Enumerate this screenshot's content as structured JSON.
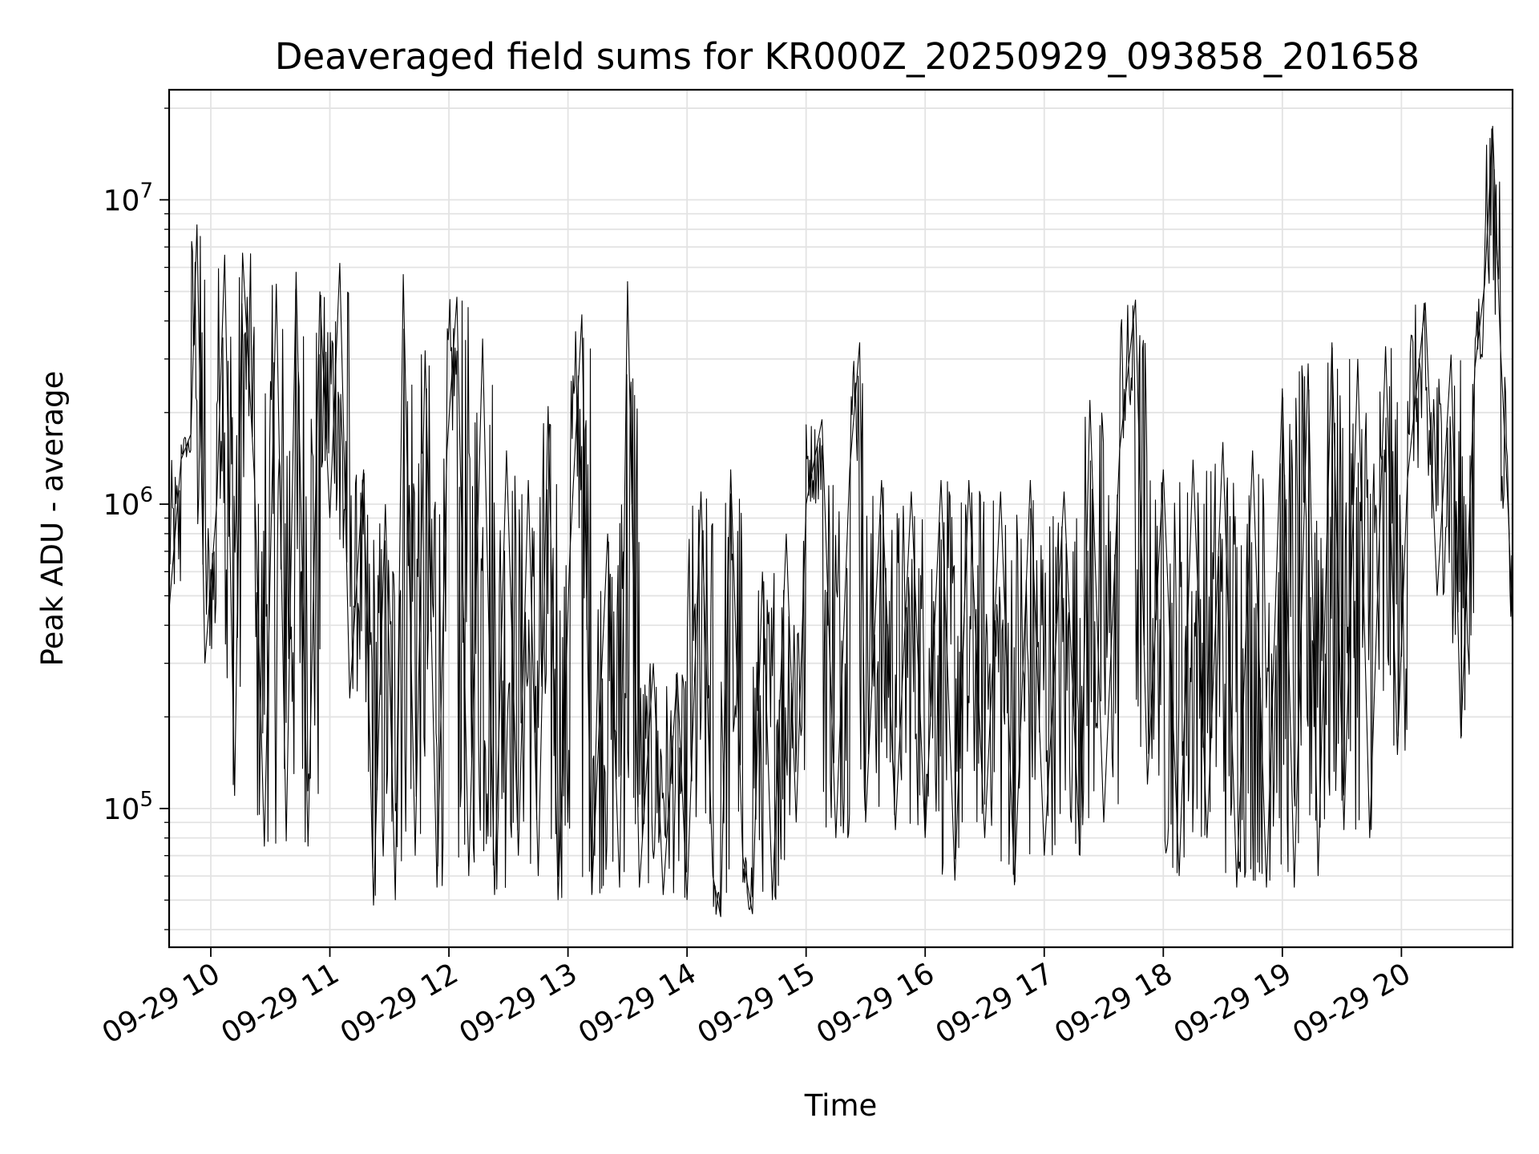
{
  "chart_data": {
    "type": "line",
    "title": "Deaveraged field sums for KR000Z_20250929_093858_201658",
    "xlabel": "Time",
    "ylabel": "Peak ADU - average",
    "yscale": "log",
    "grid": true,
    "legend": "none",
    "line_color": "#000000",
    "xlim": [
      "2025-09-29 09:39",
      "2025-09-29 20:56"
    ],
    "ylim": [
      35000,
      23000000
    ],
    "x_ticks": [
      "09-29 10",
      "09-29 11",
      "09-29 12",
      "09-29 13",
      "09-29 14",
      "09-29 15",
      "09-29 16",
      "09-29 17",
      "09-29 18",
      "09-29 19",
      "09-29 20"
    ],
    "y_ticks": [
      {
        "value": 100000,
        "base": "10",
        "exp": "5"
      },
      {
        "value": 1000000,
        "base": "10",
        "exp": "6"
      },
      {
        "value": 10000000,
        "base": "10",
        "exp": "7"
      }
    ],
    "series": [
      {
        "points": [
          [
            "09:39",
            450000
          ],
          [
            "09:45",
            1400000
          ],
          [
            "09:50",
            1700000
          ],
          [
            "09:53",
            8300000
          ],
          [
            "09:57",
            300000
          ],
          [
            "10:03",
            1000000
          ],
          [
            "10:07",
            6600000
          ],
          [
            "10:12",
            110000
          ],
          [
            "10:16",
            6700000
          ],
          [
            "10:22",
            1200000
          ],
          [
            "10:27",
            75000
          ],
          [
            "10:33",
            5300000
          ],
          [
            "10:38",
            78000
          ],
          [
            "10:43",
            5800000
          ],
          [
            "10:49",
            75000
          ],
          [
            "10:55",
            5000000
          ],
          [
            "11:00",
            900000
          ],
          [
            "11:05",
            6200000
          ],
          [
            "11:10",
            230000
          ],
          [
            "11:17",
            1300000
          ],
          [
            "11:22",
            48000
          ],
          [
            "11:28",
            1000000
          ],
          [
            "11:33",
            50000
          ],
          [
            "11:37",
            5700000
          ],
          [
            "11:43",
            70000
          ],
          [
            "11:48",
            3200000
          ],
          [
            "11:54",
            55000
          ],
          [
            "11:59",
            1500000
          ],
          [
            "12:04",
            4800000
          ],
          [
            "12:10",
            60000
          ],
          [
            "12:17",
            3500000
          ],
          [
            "12:23",
            52000
          ],
          [
            "12:29",
            1500000
          ],
          [
            "12:35",
            70000
          ],
          [
            "12:40",
            1200000
          ],
          [
            "12:45",
            60000
          ],
          [
            "12:50",
            2100000
          ],
          [
            "12:55",
            50000
          ],
          [
            "13:01",
            700000
          ],
          [
            "13:07",
            4200000
          ],
          [
            "13:12",
            52000
          ],
          [
            "13:20",
            800000
          ],
          [
            "13:26",
            55000
          ],
          [
            "13:30",
            5400000
          ],
          [
            "13:36",
            55000
          ],
          [
            "13:43",
            300000
          ],
          [
            "13:48",
            52000
          ],
          [
            "13:55",
            280000
          ],
          [
            "14:00",
            50000
          ],
          [
            "14:07",
            1100000
          ],
          [
            "14:13",
            60000
          ],
          [
            "14:17",
            44000
          ],
          [
            "14:22",
            1300000
          ],
          [
            "14:28",
            70000
          ],
          [
            "14:33",
            45000
          ],
          [
            "14:38",
            600000
          ],
          [
            "14:43",
            50000
          ],
          [
            "14:50",
            800000
          ],
          [
            "14:55",
            90000
          ],
          [
            "15:00",
            1000000
          ],
          [
            "15:08",
            1900000
          ],
          [
            "15:15",
            80000
          ],
          [
            "15:22",
            1300000
          ],
          [
            "15:27",
            3400000
          ],
          [
            "15:30",
            90000
          ],
          [
            "15:38",
            1200000
          ],
          [
            "15:45",
            85000
          ],
          [
            "15:53",
            1100000
          ],
          [
            "16:00",
            80000
          ],
          [
            "16:08",
            1200000
          ],
          [
            "16:15",
            58000
          ],
          [
            "16:22",
            1200000
          ],
          [
            "16:30",
            80000
          ],
          [
            "16:38",
            1100000
          ],
          [
            "16:45",
            56000
          ],
          [
            "16:53",
            1200000
          ],
          [
            "17:00",
            70000
          ],
          [
            "17:10",
            1100000
          ],
          [
            "17:18",
            70000
          ],
          [
            "17:23",
            2200000
          ],
          [
            "17:30",
            90000
          ],
          [
            "17:38",
            1500000
          ],
          [
            "17:46",
            4700000
          ],
          [
            "17:52",
            120000
          ],
          [
            "18:00",
            1300000
          ],
          [
            "18:08",
            60000
          ],
          [
            "18:15",
            1400000
          ],
          [
            "18:22",
            80000
          ],
          [
            "18:30",
            1600000
          ],
          [
            "18:37",
            55000
          ],
          [
            "18:45",
            1500000
          ],
          [
            "18:52",
            55000
          ],
          [
            "19:00",
            2400000
          ],
          [
            "19:06",
            55000
          ],
          [
            "19:13",
            2900000
          ],
          [
            "19:18",
            60000
          ],
          [
            "19:25",
            3400000
          ],
          [
            "19:31",
            85000
          ],
          [
            "19:38",
            3000000
          ],
          [
            "19:44",
            80000
          ],
          [
            "19:52",
            3300000
          ],
          [
            "19:58",
            150000
          ],
          [
            "20:03",
            1200000
          ],
          [
            "20:12",
            4600000
          ],
          [
            "20:18",
            500000
          ],
          [
            "20:25",
            3100000
          ],
          [
            "20:30",
            170000
          ],
          [
            "20:37",
            2800000
          ],
          [
            "20:42",
            5300000
          ],
          [
            "20:46",
            17500000
          ],
          [
            "20:50",
            3200000
          ],
          [
            "20:54",
            900000
          ],
          [
            "20:56",
            380000
          ]
        ]
      }
    ]
  }
}
